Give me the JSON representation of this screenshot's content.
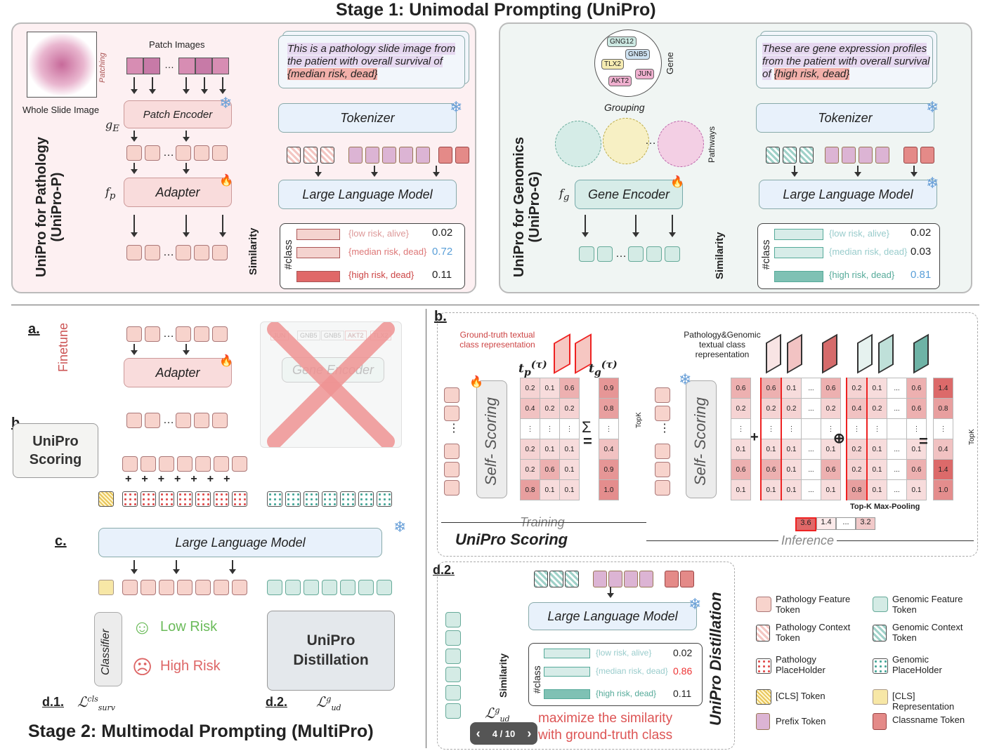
{
  "stage1_title": "Stage 1: Unimodal Prompting (UniPro)",
  "stage2_title": "Stage 2: Multimodal Prompting (MultiPro)",
  "unipro_p": {
    "side_label": "UniPro for Pathology (UniPro-P)",
    "patch_images": "Patch Images",
    "patching": "Patching",
    "wsi": "Whole Slide Image",
    "prompt": "This is a pathology slide image from the patient with overall survival of",
    "prompt_class": "{median risk, dead}",
    "tokenizer": "Tokenizer",
    "patch_encoder": "Patch Encoder",
    "adapter": "Adapter",
    "llm": "Large Language Model",
    "similarity": "Similarity",
    "class_label": "#class",
    "classes": [
      {
        "name": "{low risk, alive}",
        "score": "0.02"
      },
      {
        "name": "{median risk, dead}",
        "score": "0.72"
      },
      {
        "name": "{high risk, dead}",
        "score": "0.11"
      }
    ]
  },
  "unipro_g": {
    "side_label": "UniPro for Genomics (UniPro-G)",
    "genes": [
      "GNG12",
      "GNB5",
      "TLX2",
      "AKT2",
      "JUN"
    ],
    "gene": "Gene",
    "grouping": "Grouping",
    "pathways": "Pathways",
    "prompt": "These are gene expression profiles from the patient with overall survival of",
    "prompt_class": "{high risk, dead}",
    "tokenizer": "Tokenizer",
    "gene_encoder": "Gene Encoder",
    "llm": "Large Language Model",
    "similarity": "Similarity",
    "class_label": "#class",
    "classes": [
      {
        "name": "{low risk, alive}",
        "score": "0.02"
      },
      {
        "name": "{median risk, dead}",
        "score": "0.03"
      },
      {
        "name": "{high risk, dead}",
        "score": "0.81"
      }
    ]
  },
  "stage2": {
    "a_label": "a.",
    "finetune": "Finetune",
    "adapter": "Adapter",
    "gene_encoder": "Gene Encoder",
    "genes_faded": [
      "JUN",
      "GNB5",
      "GNB5",
      "AKT2",
      "TLX2"
    ],
    "b_label": "b.",
    "scoring": "UniPro Scoring",
    "c_label": "c.",
    "llm": "Large Language Model",
    "classifier": "Classifier",
    "low_risk": "Low Risk",
    "high_risk": "High Risk",
    "distill": "UniPro Distillation",
    "d1": "d.1.",
    "d2": "d.2."
  },
  "scoring_panel": {
    "b_label": "b.",
    "gt_label": "Ground-truth textual class representation",
    "pg_label": "Pathology&Genomic textual class representation",
    "self_scoring": "Self- Scoring",
    "training": "Training",
    "inference": "Inference",
    "title": "UniPro Scoring",
    "topk": "TopK",
    "topk_pool": "Top-K Max-Pooling",
    "train_rows": [
      [
        "0.2",
        "0.1",
        "0.6"
      ],
      [
        "0.4",
        "0.2",
        "0.2"
      ],
      [
        "⋮",
        "⋮",
        "⋮"
      ],
      [
        "0.2",
        "0.1",
        "0.1"
      ],
      [
        "0.2",
        "0.6",
        "0.1"
      ],
      [
        "0.8",
        "0.1",
        "0.1"
      ]
    ],
    "train_sum": [
      "0.9",
      "0.8",
      "⋮",
      "0.4",
      "0.9",
      "1.0"
    ],
    "inf_first": [
      "0.6",
      "0.2",
      "⋮",
      "0.1",
      "0.6",
      "0.1"
    ],
    "inf_p": [
      [
        "0.6",
        "0.1",
        "...",
        "0.6"
      ],
      [
        "0.2",
        "0.2",
        "...",
        "0.2"
      ],
      [
        "⋮",
        "⋮",
        "",
        "⋮"
      ],
      [
        "0.1",
        "0.1",
        "...",
        "0.1"
      ],
      [
        "0.6",
        "0.1",
        "...",
        "0.6"
      ],
      [
        "0.1",
        "0.1",
        "...",
        "0.1"
      ]
    ],
    "inf_g": [
      [
        "0.2",
        "0.1",
        "...",
        "0.6"
      ],
      [
        "0.4",
        "0.2",
        "...",
        "0.6"
      ],
      [
        "⋮",
        "⋮",
        "",
        "⋮"
      ],
      [
        "0.2",
        "0.1",
        "...",
        "0.1"
      ],
      [
        "0.2",
        "0.1",
        "...",
        "0.6"
      ],
      [
        "0.8",
        "0.1",
        "...",
        "0.1"
      ]
    ],
    "inf_sum": [
      "1.4",
      "0.8",
      "⋮",
      "0.4",
      "1.4",
      "1.0"
    ],
    "pool": [
      "3.6",
      "1.4",
      "...",
      "3.2"
    ]
  },
  "distill_panel": {
    "label": "d.2.",
    "llm": "Large Language Model",
    "similarity": "Similarity",
    "class_label": "#class",
    "title": "UniPro Distillation",
    "classes": [
      {
        "name": "{low risk, alive}",
        "score": "0.02"
      },
      {
        "name": "{median risk, dead}",
        "score": "0.86"
      },
      {
        "name": "{high risk, dead}",
        "score": "0.11"
      }
    ],
    "maximize": "maximize the similarity with ground-truth class"
  },
  "legend": [
    "Pathology Feature Token",
    "Genomic Feature Token",
    "Pathology Context Token",
    "Genomic Context Token",
    "Pathology PlaceHolder",
    "Genomic PlaceHolder",
    "[CLS] Token",
    "[CLS] Representation",
    "Prefix Token",
    "Classname Token"
  ],
  "pager": {
    "text": "4 / 10",
    "prev": "‹",
    "next": "›"
  },
  "colors": {
    "pink": "#f9dcdc",
    "green": "#d7ece8",
    "red": "#e44",
    "blue": "#6aa0d8"
  }
}
